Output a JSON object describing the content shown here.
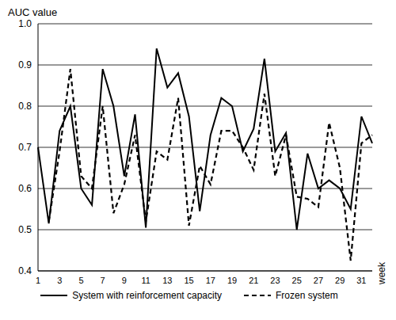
{
  "chart_data": {
    "type": "line",
    "y_label": "AUC value",
    "x_label": "week",
    "categories": [
      "1",
      null,
      "3",
      null,
      "5",
      null,
      "7",
      null,
      "9",
      null,
      "11",
      null,
      "13",
      null,
      "15",
      null,
      "17",
      null,
      "19",
      null,
      "21",
      null,
      "23",
      null,
      "25",
      null,
      "27",
      null,
      "29",
      null,
      "31",
      null
    ],
    "series": [
      {
        "name": "System with reinforcement capacity",
        "color": "#000000",
        "line_style": "solid",
        "values": [
          0.7,
          0.515,
          0.74,
          0.8,
          0.6,
          0.56,
          0.89,
          0.8,
          0.63,
          0.78,
          0.505,
          0.94,
          0.845,
          0.88,
          0.775,
          0.545,
          0.73,
          0.82,
          0.8,
          0.69,
          0.745,
          0.915,
          0.69,
          0.735,
          0.5,
          0.685,
          0.6,
          0.62,
          0.6,
          0.55,
          0.775,
          0.71
        ]
      },
      {
        "name": "Frozen system",
        "color": "#000000",
        "line_style": "dashed",
        "values": [
          null,
          0.52,
          0.69,
          0.89,
          0.63,
          0.6,
          0.8,
          0.54,
          0.61,
          0.73,
          0.52,
          0.69,
          0.67,
          0.82,
          0.51,
          0.655,
          0.61,
          0.74,
          0.74,
          0.7,
          0.645,
          0.83,
          0.63,
          0.73,
          0.58,
          0.575,
          0.555,
          0.76,
          0.65,
          0.425,
          0.71,
          0.73
        ]
      }
    ],
    "ylim": [
      0.4,
      1
    ],
    "yticks": [
      0.4,
      0.5,
      0.6,
      0.7,
      0.8,
      0.9,
      {
        "value": 1,
        "label": "1.0"
      }
    ],
    "grid": true,
    "legend": "bottom"
  }
}
